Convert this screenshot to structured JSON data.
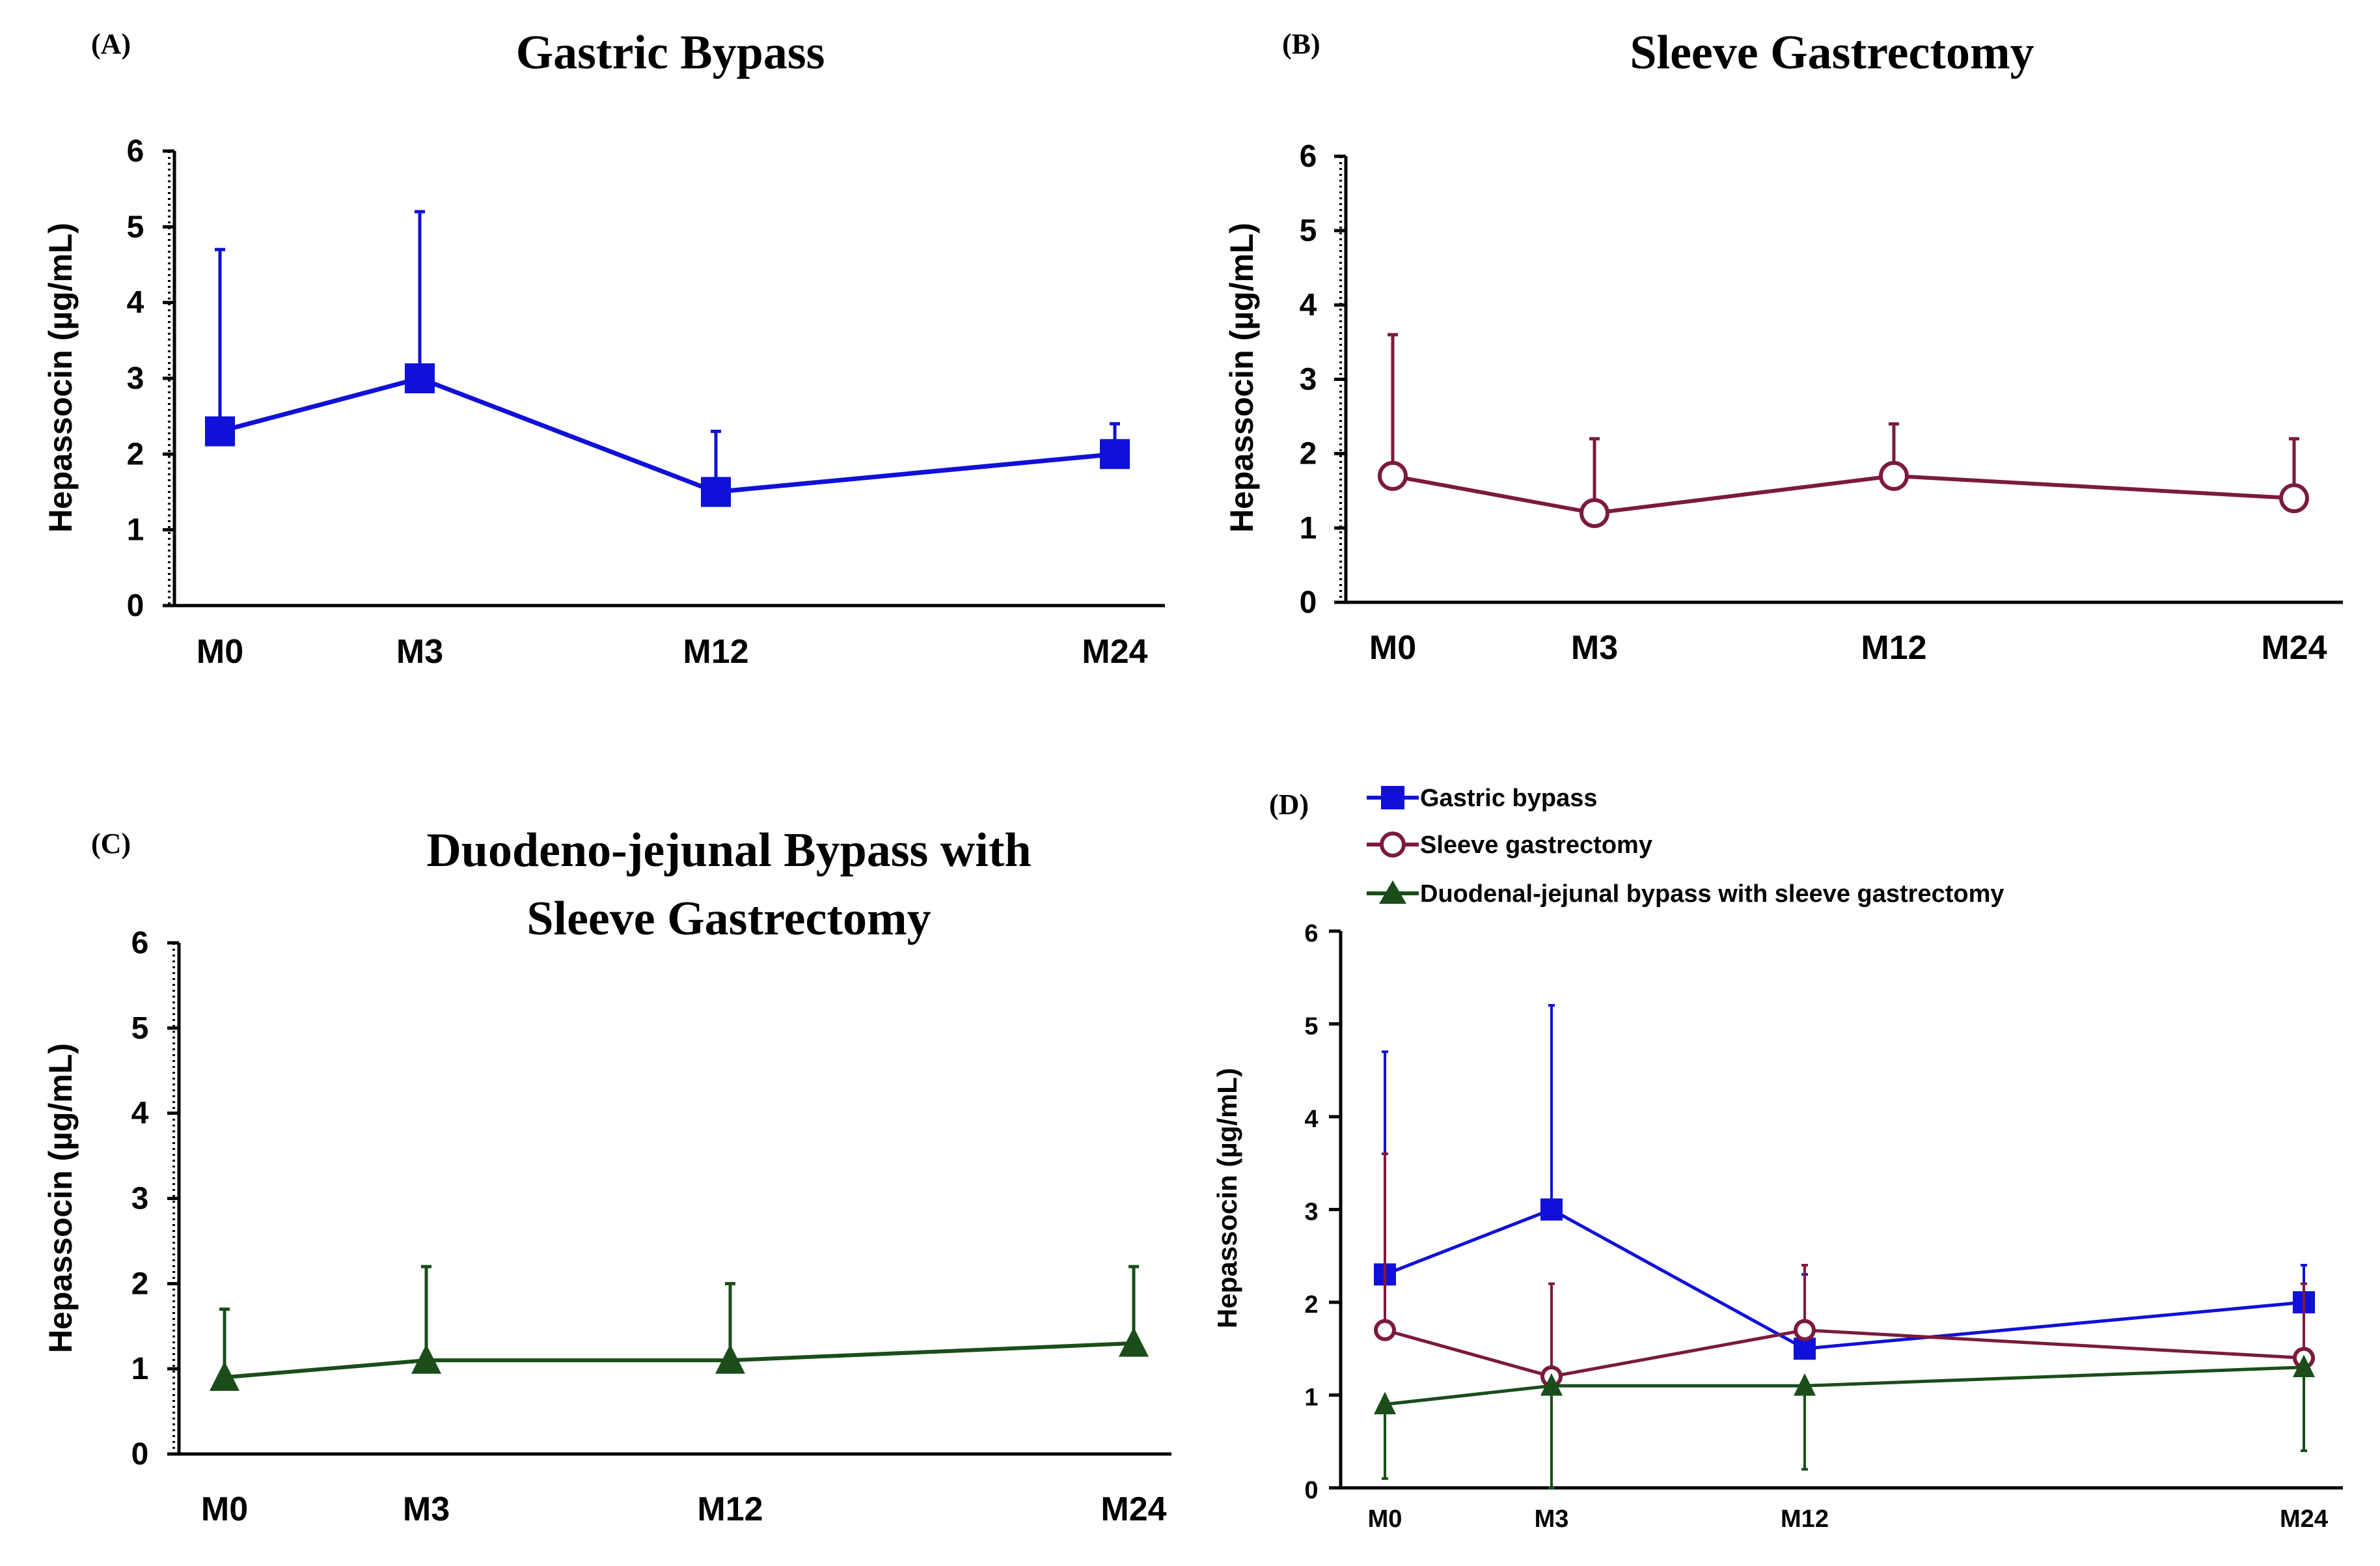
{
  "chart_data": [
    {
      "panel": "(A)",
      "title": "Gastric Bypass",
      "type": "line",
      "xlabel": "",
      "ylabel": "Hepassocin (µg/mL)",
      "categories": [
        "M0",
        "M3",
        "M12",
        "M24"
      ],
      "yticks": [
        "0",
        "1",
        "2",
        "3",
        "4",
        "5",
        "6"
      ],
      "ylim": [
        0,
        6
      ],
      "series": [
        {
          "name": "Gastric bypass",
          "color": "#1010d8",
          "marker": "square",
          "values": [
            2.3,
            3.0,
            1.5,
            2.0
          ],
          "error_upper": [
            4.7,
            5.2,
            2.3,
            2.4
          ]
        }
      ]
    },
    {
      "panel": "(B)",
      "title": "Sleeve Gastrectomy",
      "type": "line",
      "xlabel": "",
      "ylabel": "Hepassocin (µg/mL)",
      "categories": [
        "M0",
        "M3",
        "M12",
        "M24"
      ],
      "yticks": [
        "0",
        "1",
        "2",
        "3",
        "4",
        "5",
        "6"
      ],
      "ylim": [
        0,
        6
      ],
      "series": [
        {
          "name": "Sleeve gastrectomy",
          "color": "#7b1a3f",
          "marker": "circle-open",
          "values": [
            1.7,
            1.2,
            1.7,
            1.4
          ],
          "error_upper": [
            3.6,
            2.2,
            2.4,
            2.2
          ]
        }
      ]
    },
    {
      "panel": "(C)",
      "title_line1": "Duodeno-jejunal Bypass with",
      "title_line2": "Sleeve Gastrectomy",
      "type": "line",
      "xlabel": "",
      "ylabel": "Hepassocin (µg/mL)",
      "categories": [
        "M0",
        "M3",
        "M12",
        "M24"
      ],
      "yticks": [
        "0",
        "1",
        "2",
        "3",
        "4",
        "5",
        "6"
      ],
      "ylim": [
        0,
        6
      ],
      "series": [
        {
          "name": "Duodenal-jejunal bypass with sleeve gastrectomy",
          "color": "#1a4d1a",
          "marker": "triangle",
          "values": [
            0.9,
            1.1,
            1.1,
            1.3
          ],
          "error_upper": [
            1.7,
            2.2,
            2.0,
            2.2
          ]
        }
      ]
    },
    {
      "panel": "(D)",
      "type": "line",
      "xlabel": "",
      "ylabel": "Hepassocin (µg/mL)",
      "categories": [
        "M0",
        "M3",
        "M12",
        "M24"
      ],
      "yticks": [
        "0",
        "1",
        "2",
        "3",
        "4",
        "5",
        "6"
      ],
      "ylim": [
        0,
        6
      ],
      "legend": "top-left",
      "series": [
        {
          "name": "Gastric bypass",
          "color": "#1010d8",
          "marker": "square",
          "values": [
            2.3,
            3.0,
            1.5,
            2.0
          ],
          "error_upper": [
            4.7,
            5.2,
            2.3,
            2.4
          ]
        },
        {
          "name": "Sleeve gastrectomy",
          "color": "#7b1a3f",
          "marker": "circle-open",
          "values": [
            1.7,
            1.2,
            1.7,
            1.4
          ],
          "error_upper": [
            3.6,
            2.2,
            2.4,
            2.2
          ]
        },
        {
          "name": "Duodenal-jejunal bypass with sleeve gastrectomy",
          "color": "#1a4d1a",
          "marker": "triangle",
          "values": [
            0.9,
            1.1,
            1.1,
            1.3
          ],
          "error_lower": [
            0.1,
            0.0,
            0.2,
            0.4
          ]
        }
      ]
    }
  ]
}
